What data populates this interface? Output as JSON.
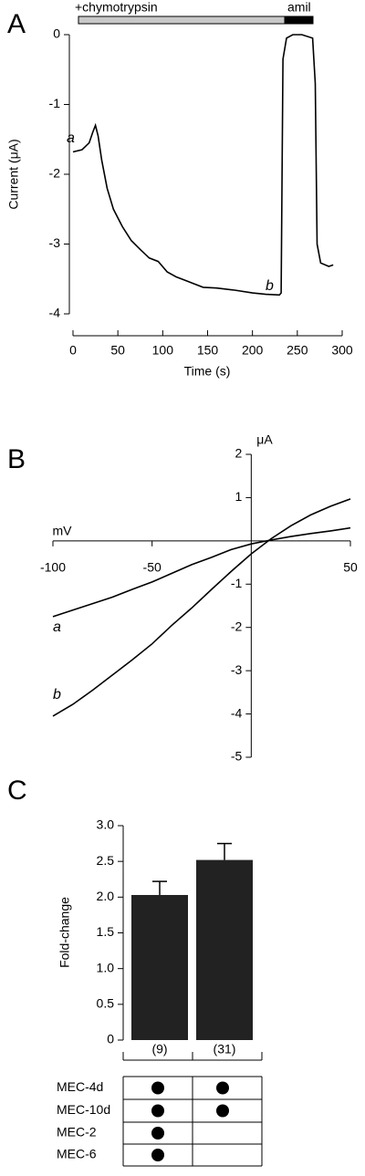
{
  "chart_data": [
    {
      "type": "line",
      "panel": "A",
      "axes": "offset",
      "xlabel": "Time (s)",
      "ylabel": "Current (μA)",
      "treatments": [
        "+chymotrypsin",
        "amil"
      ],
      "annotations": [
        "a",
        "b"
      ],
      "x": [
        0,
        10,
        18,
        22,
        25,
        28,
        32,
        38,
        45,
        55,
        65,
        75,
        85,
        95,
        105,
        115,
        125,
        135,
        145,
        160,
        180,
        200,
        215,
        230,
        232,
        234,
        238,
        245,
        255,
        267,
        270,
        272,
        276,
        285,
        290
      ],
      "series": [
        {
          "color": "#000000",
          "values": [
            -1.68,
            -1.65,
            -1.55,
            -1.4,
            -1.3,
            -1.45,
            -1.8,
            -2.2,
            -2.5,
            -2.75,
            -2.95,
            -3.08,
            -3.2,
            -3.25,
            -3.4,
            -3.47,
            -3.52,
            -3.57,
            -3.62,
            -3.63,
            -3.66,
            -3.7,
            -3.72,
            -3.73,
            -3.7,
            -0.35,
            -0.05,
            0,
            0,
            -0.05,
            -0.7,
            -3.0,
            -3.27,
            -3.32,
            -3.3
          ]
        }
      ],
      "xlim": [
        0,
        300
      ],
      "xticks": [
        0,
        50,
        100,
        150,
        200,
        250,
        300
      ],
      "ylim": [
        -4,
        0
      ],
      "yticks": [
        0,
        -1,
        -2,
        -3,
        -4
      ]
    },
    {
      "type": "line",
      "panel": "B",
      "axes": "origin",
      "xlabel": "mV",
      "ylabel": "μA",
      "x": [
        -100,
        -90,
        -80,
        -70,
        -60,
        -50,
        -40,
        -30,
        -20,
        -10,
        0,
        10,
        20,
        30,
        40,
        50
      ],
      "series": [
        {
          "name": "a",
          "color": "#000000",
          "values": [
            -1.75,
            -1.6,
            -1.45,
            -1.3,
            -1.12,
            -0.95,
            -0.75,
            -0.55,
            -0.38,
            -0.2,
            -0.07,
            0.02,
            0.1,
            0.17,
            0.23,
            0.3
          ]
        },
        {
          "name": "b",
          "color": "#000000",
          "values": [
            -4.05,
            -3.78,
            -3.45,
            -3.1,
            -2.75,
            -2.38,
            -1.95,
            -1.55,
            -1.12,
            -0.7,
            -0.3,
            0.05,
            0.35,
            0.6,
            0.8,
            0.97
          ]
        }
      ],
      "xlim": [
        -100,
        50
      ],
      "xticks": [
        -100,
        -50,
        50
      ],
      "ylim": [
        -5,
        2
      ],
      "yticks": [
        2,
        1,
        -1,
        -2,
        -3,
        -4,
        -5
      ]
    },
    {
      "type": "bar",
      "panel": "C",
      "ylabel": "Fold-change",
      "color": "#222222",
      "values": [
        2.03,
        2.52
      ],
      "errors": [
        0.19,
        0.23
      ],
      "n_labels": [
        "(9)",
        "(31)"
      ],
      "ylim": [
        0,
        3
      ],
      "yticks": [
        0,
        0.5,
        {
          "value": 1,
          "label": "1.0"
        },
        1.5,
        {
          "value": 2,
          "label": "2.0"
        },
        2.5,
        {
          "value": 3,
          "label": "3.0"
        }
      ],
      "table": {
        "rows": [
          {
            "label": "MEC-4d",
            "present": [
              true,
              true
            ]
          },
          {
            "label": "MEC-10d",
            "present": [
              true,
              true
            ]
          },
          {
            "label": "MEC-2",
            "present": [
              true,
              false
            ]
          },
          {
            "label": "MEC-6",
            "present": [
              true,
              false
            ]
          }
        ]
      }
    }
  ]
}
